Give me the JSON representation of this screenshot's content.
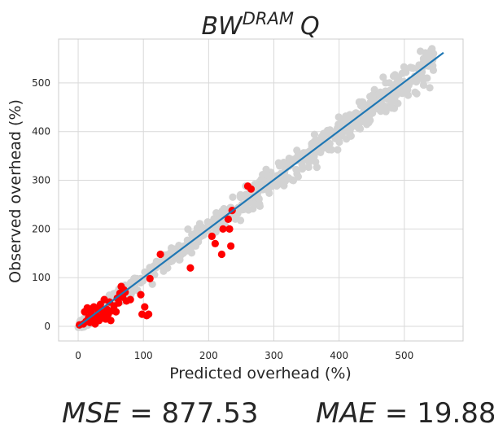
{
  "chart_data": {
    "type": "scatter",
    "title_base": "BW",
    "title_sup": "DRAM",
    "title_tail": "Q",
    "xlabel": "Predicted overhead (%)",
    "ylabel": "Observed overhead (%)",
    "xlim": [
      -30,
      590
    ],
    "ylim": [
      -30,
      590
    ],
    "xticks": [
      0,
      100,
      200,
      300,
      400,
      500
    ],
    "yticks": [
      0,
      100,
      200,
      300,
      400,
      500
    ],
    "grid": true,
    "colors": {
      "train": "#d3d3d3",
      "test": "#ff0000",
      "fit": "#1f77b4",
      "grid": "#d9d9d9",
      "spine": "#cccccc"
    },
    "fit_line": {
      "x": [
        0,
        560
      ],
      "y": [
        0,
        562
      ]
    },
    "test_points": [
      [
        2,
        3
      ],
      [
        8,
        5
      ],
      [
        10,
        30
      ],
      [
        12,
        10
      ],
      [
        14,
        38
      ],
      [
        16,
        18
      ],
      [
        18,
        8
      ],
      [
        20,
        28
      ],
      [
        22,
        15
      ],
      [
        24,
        40
      ],
      [
        26,
        5
      ],
      [
        28,
        22
      ],
      [
        30,
        35
      ],
      [
        32,
        12
      ],
      [
        34,
        45
      ],
      [
        36,
        18
      ],
      [
        38,
        28
      ],
      [
        40,
        55
      ],
      [
        42,
        15
      ],
      [
        44,
        35
      ],
      [
        46,
        25
      ],
      [
        48,
        50
      ],
      [
        50,
        12
      ],
      [
        52,
        32
      ],
      [
        55,
        42
      ],
      [
        58,
        30
      ],
      [
        60,
        58
      ],
      [
        62,
        48
      ],
      [
        64,
        68
      ],
      [
        66,
        82
      ],
      [
        68,
        60
      ],
      [
        70,
        75
      ],
      [
        72,
        70
      ],
      [
        74,
        52
      ],
      [
        80,
        55
      ],
      [
        96,
        65
      ],
      [
        98,
        25
      ],
      [
        102,
        40
      ],
      [
        105,
        22
      ],
      [
        108,
        25
      ],
      [
        110,
        98
      ],
      [
        126,
        148
      ],
      [
        172,
        120
      ],
      [
        205,
        185
      ],
      [
        210,
        170
      ],
      [
        220,
        148
      ],
      [
        222,
        200
      ],
      [
        230,
        220
      ],
      [
        232,
        200
      ],
      [
        234,
        165
      ],
      [
        236,
        238
      ],
      [
        260,
        288
      ],
      [
        265,
        282
      ]
    ]
  },
  "metrics": {
    "mse_label": "MSE",
    "mse_value": "877.53",
    "mae_label": "MAE",
    "mae_value": "19.88"
  }
}
